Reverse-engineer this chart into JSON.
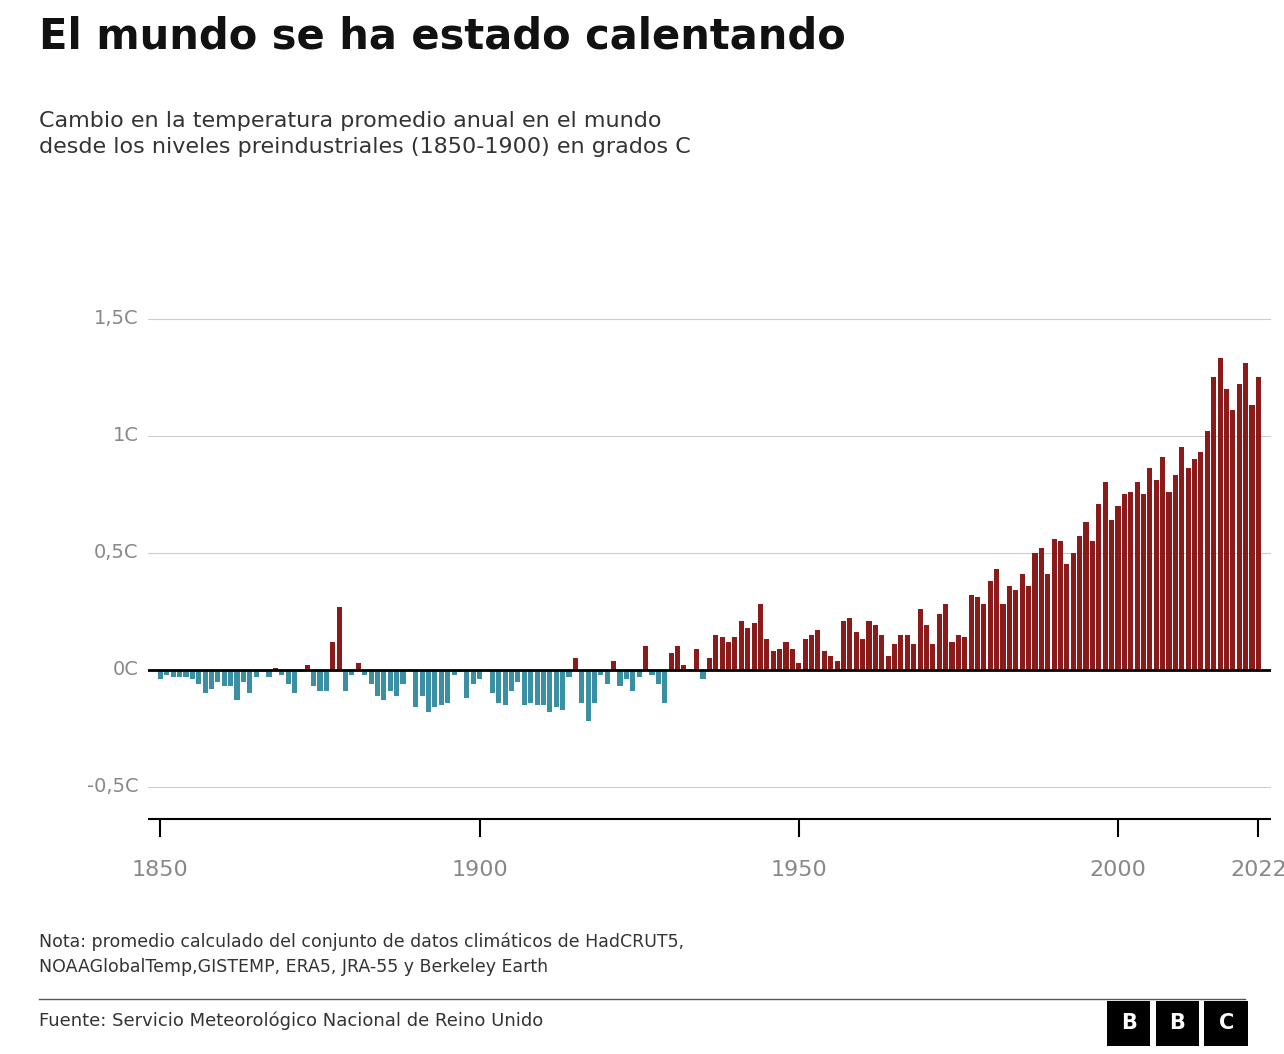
{
  "title": "El mundo se ha estado calentando",
  "subtitle": "Cambio en la temperatura promedio anual en el mundo\ndesde los niveles preindustriales (1850-1900) en grados C",
  "note": "Nota: promedio calculado del conjunto de datos climáticos de HadCRUT5,\nNOAAGlobalTemp,GISTEMP, ERA5, JRA-55 y Berkeley Earth",
  "source": "Fuente: Servicio Meteorológico Nacional de Reino Unido",
  "yticks": [
    -0.5,
    0.0,
    0.5,
    1.0,
    1.5
  ],
  "ytick_labels": [
    "-0,5C",
    "0C",
    "0,5C",
    "1C",
    "1,5C"
  ],
  "xtick_vals": [
    1850,
    1900,
    1950,
    2000,
    2022
  ],
  "xlim": [
    1848,
    2024
  ],
  "ylim": [
    -0.65,
    1.6
  ],
  "color_positive": "#8B1A1A",
  "color_negative": "#3A8FA3",
  "background": "#ffffff",
  "years": [
    1850,
    1851,
    1852,
    1853,
    1854,
    1855,
    1856,
    1857,
    1858,
    1859,
    1860,
    1861,
    1862,
    1863,
    1864,
    1865,
    1866,
    1867,
    1868,
    1869,
    1870,
    1871,
    1872,
    1873,
    1874,
    1875,
    1876,
    1877,
    1878,
    1879,
    1880,
    1881,
    1882,
    1883,
    1884,
    1885,
    1886,
    1887,
    1888,
    1889,
    1890,
    1891,
    1892,
    1893,
    1894,
    1895,
    1896,
    1897,
    1898,
    1899,
    1900,
    1901,
    1902,
    1903,
    1904,
    1905,
    1906,
    1907,
    1908,
    1909,
    1910,
    1911,
    1912,
    1913,
    1914,
    1915,
    1916,
    1917,
    1918,
    1919,
    1920,
    1921,
    1922,
    1923,
    1924,
    1925,
    1926,
    1927,
    1928,
    1929,
    1930,
    1931,
    1932,
    1933,
    1934,
    1935,
    1936,
    1937,
    1938,
    1939,
    1940,
    1941,
    1942,
    1943,
    1944,
    1945,
    1946,
    1947,
    1948,
    1949,
    1950,
    1951,
    1952,
    1953,
    1954,
    1955,
    1956,
    1957,
    1958,
    1959,
    1960,
    1961,
    1962,
    1963,
    1964,
    1965,
    1966,
    1967,
    1968,
    1969,
    1970,
    1971,
    1972,
    1973,
    1974,
    1975,
    1976,
    1977,
    1978,
    1979,
    1980,
    1981,
    1982,
    1983,
    1984,
    1985,
    1986,
    1987,
    1988,
    1989,
    1990,
    1991,
    1992,
    1993,
    1994,
    1995,
    1996,
    1997,
    1998,
    1999,
    2000,
    2001,
    2002,
    2003,
    2004,
    2005,
    2006,
    2007,
    2008,
    2009,
    2010,
    2011,
    2012,
    2013,
    2014,
    2015,
    2016,
    2017,
    2018,
    2019,
    2020,
    2021,
    2022
  ],
  "values": [
    -0.04,
    -0.02,
    -0.03,
    -0.03,
    -0.03,
    -0.04,
    -0.06,
    -0.1,
    -0.08,
    -0.05,
    -0.07,
    -0.07,
    -0.13,
    -0.05,
    -0.1,
    -0.03,
    -0.01,
    -0.03,
    0.01,
    -0.02,
    -0.06,
    -0.1,
    -0.01,
    0.02,
    -0.07,
    -0.09,
    -0.09,
    0.12,
    0.27,
    -0.09,
    -0.02,
    0.03,
    -0.02,
    -0.06,
    -0.11,
    -0.13,
    -0.09,
    -0.11,
    -0.06,
    0.0,
    -0.16,
    -0.11,
    -0.18,
    -0.16,
    -0.15,
    -0.14,
    -0.02,
    -0.01,
    -0.12,
    -0.06,
    -0.04,
    0.0,
    -0.1,
    -0.14,
    -0.15,
    -0.09,
    -0.05,
    -0.15,
    -0.14,
    -0.15,
    -0.15,
    -0.18,
    -0.16,
    -0.17,
    -0.03,
    0.05,
    -0.14,
    -0.22,
    -0.14,
    -0.02,
    -0.06,
    0.04,
    -0.07,
    -0.04,
    -0.09,
    -0.03,
    0.1,
    -0.02,
    -0.06,
    -0.14,
    0.07,
    0.1,
    0.02,
    0.0,
    0.09,
    -0.04,
    0.05,
    0.15,
    0.14,
    0.12,
    0.14,
    0.21,
    0.18,
    0.2,
    0.28,
    0.13,
    0.08,
    0.09,
    0.12,
    0.09,
    0.03,
    0.13,
    0.15,
    0.17,
    0.08,
    0.06,
    0.04,
    0.21,
    0.22,
    0.16,
    0.13,
    0.21,
    0.19,
    0.15,
    0.06,
    0.11,
    0.15,
    0.15,
    0.11,
    0.26,
    0.19,
    0.11,
    0.24,
    0.28,
    0.12,
    0.15,
    0.14,
    0.32,
    0.31,
    0.28,
    0.38,
    0.43,
    0.28,
    0.36,
    0.34,
    0.41,
    0.36,
    0.5,
    0.52,
    0.41,
    0.56,
    0.55,
    0.45,
    0.5,
    0.57,
    0.63,
    0.55,
    0.71,
    0.8,
    0.64,
    0.7,
    0.75,
    0.76,
    0.8,
    0.75,
    0.86,
    0.81,
    0.91,
    0.76,
    0.83,
    0.95,
    0.86,
    0.9,
    0.93,
    1.02,
    1.25,
    1.33,
    1.2,
    1.11,
    1.22,
    1.31,
    1.13,
    1.25
  ]
}
